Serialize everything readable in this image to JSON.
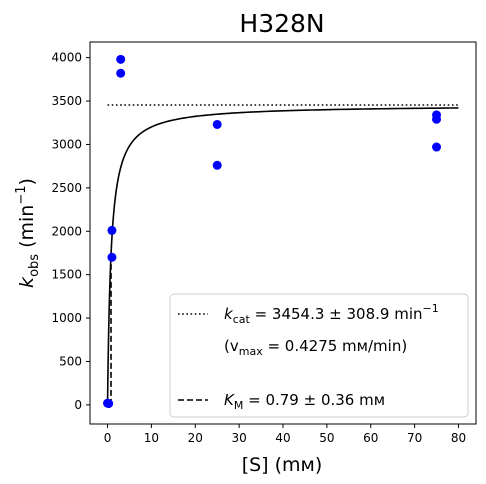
{
  "chart_data": {
    "type": "scatter",
    "title": "H328N",
    "xlabel": "[S] (mм)",
    "ylabel_main": "k",
    "ylabel_sub": "obs",
    "ylabel_unit_prefix": "(min",
    "ylabel_unit_sup": "−1",
    "ylabel_unit_suffix": ")",
    "xlim": [
      -4,
      84
    ],
    "ylim": [
      -220,
      4180
    ],
    "x_ticks": [
      0,
      10,
      20,
      30,
      40,
      50,
      60,
      70,
      80
    ],
    "y_ticks": [
      0,
      500,
      1000,
      1500,
      2000,
      2500,
      3000,
      3500,
      4000
    ],
    "grid": false,
    "series": [
      {
        "kind": "points",
        "color": "#0000ff",
        "x": [
          0,
          0.25,
          1,
          1,
          3,
          3,
          25,
          25,
          75,
          75,
          75
        ],
        "y": [
          20,
          15,
          1700,
          2010,
          3980,
          3820,
          3230,
          2760,
          3340,
          3290,
          2970
        ]
      },
      {
        "kind": "fit-curve",
        "color": "#000000",
        "style": "solid",
        "model": "michaelis-menten",
        "vmax": 3454.3,
        "km": 0.79,
        "x_range": [
          0.01,
          80
        ]
      },
      {
        "kind": "kcat-line",
        "color": "#000000",
        "style": "dotted",
        "y": 3454.3,
        "x_range": [
          0,
          80
        ]
      },
      {
        "kind": "km-line",
        "color": "#000000",
        "style": "dashed",
        "x": 0.79,
        "y_range": [
          0,
          1727
        ]
      }
    ],
    "legend": {
      "placement": "lower-right",
      "kcat_label": "k",
      "kcat_sub": "cat",
      "kcat_value": " = 3454.3 ± 308.9 min",
      "kcat_unit_sup": "−1",
      "vmax_open": "(v",
      "vmax_sub": "max",
      "vmax_value": " = 0.4275 mм/min)",
      "km_label": "K",
      "km_sub": "M",
      "km_value": " = 0.79 ± 0.36 mм"
    }
  }
}
